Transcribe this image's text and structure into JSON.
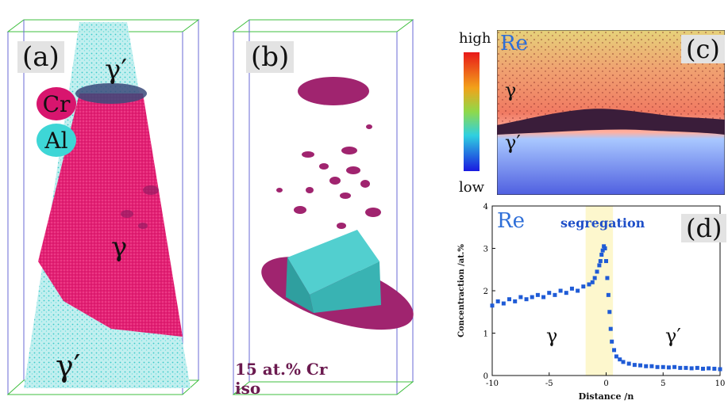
{
  "panel_a": {
    "label": "(a)",
    "legend": [
      {
        "text": "Cr",
        "color": "#d8156e"
      },
      {
        "text": "Al",
        "color": "#3ed6d6"
      }
    ],
    "phases": {
      "top": "γ′",
      "middle": "γ",
      "bottom": "γ′"
    }
  },
  "panel_b": {
    "label": "(b)",
    "iso_line1": "15 at.% Cr",
    "iso_line2": "iso"
  },
  "panel_c": {
    "label": "(c)",
    "element": "Re",
    "scale_high": "high",
    "scale_low": "low",
    "phase_top": "γ",
    "phase_bottom": "γ′"
  },
  "panel_d": {
    "label": "(d)",
    "element": "Re",
    "annotation": "segregation",
    "phase_left": "γ",
    "phase_right": "γ′"
  },
  "chart_data": {
    "type": "scatter",
    "title": "",
    "xlabel": "Distance /n",
    "ylabel": "Concentraction /at.%",
    "xlim": [
      -10,
      10
    ],
    "ylim": [
      0,
      4
    ],
    "xticks": [
      "-10",
      "-5",
      "0",
      "5",
      "10"
    ],
    "yticks": [
      "0",
      "1",
      "2",
      "3",
      "4"
    ],
    "highlight_band": [
      -1.8,
      0.6
    ],
    "color": "#1f5bd6",
    "series": [
      {
        "x": [
          -10,
          -9.5,
          -9,
          -8.5,
          -8,
          -7.5,
          -7,
          -6.5,
          -6,
          -5.5,
          -5,
          -4.5,
          -4,
          -3.5,
          -3,
          -2.5,
          -2,
          -1.5,
          -1.2,
          -1,
          -0.8,
          -0.6,
          -0.5,
          -0.4,
          -0.3,
          -0.2,
          -0.1,
          0,
          0.1,
          0.2,
          0.3,
          0.4,
          0.5,
          0.7,
          0.9,
          1.2,
          1.5,
          2,
          2.5,
          3,
          3.5,
          4,
          4.5,
          5,
          5.5,
          6,
          6.5,
          7,
          7.5,
          8,
          8.5,
          9,
          9.5,
          10
        ],
        "y": [
          1.65,
          1.75,
          1.7,
          1.8,
          1.75,
          1.85,
          1.8,
          1.85,
          1.9,
          1.85,
          1.95,
          1.9,
          2.0,
          1.95,
          2.05,
          2.0,
          2.1,
          2.15,
          2.2,
          2.3,
          2.45,
          2.6,
          2.7,
          2.85,
          2.95,
          3.05,
          3.0,
          2.7,
          2.3,
          1.9,
          1.5,
          1.1,
          0.8,
          0.6,
          0.45,
          0.38,
          0.32,
          0.28,
          0.25,
          0.24,
          0.22,
          0.22,
          0.2,
          0.2,
          0.19,
          0.2,
          0.18,
          0.18,
          0.17,
          0.18,
          0.16,
          0.17,
          0.16,
          0.15
        ]
      }
    ]
  }
}
